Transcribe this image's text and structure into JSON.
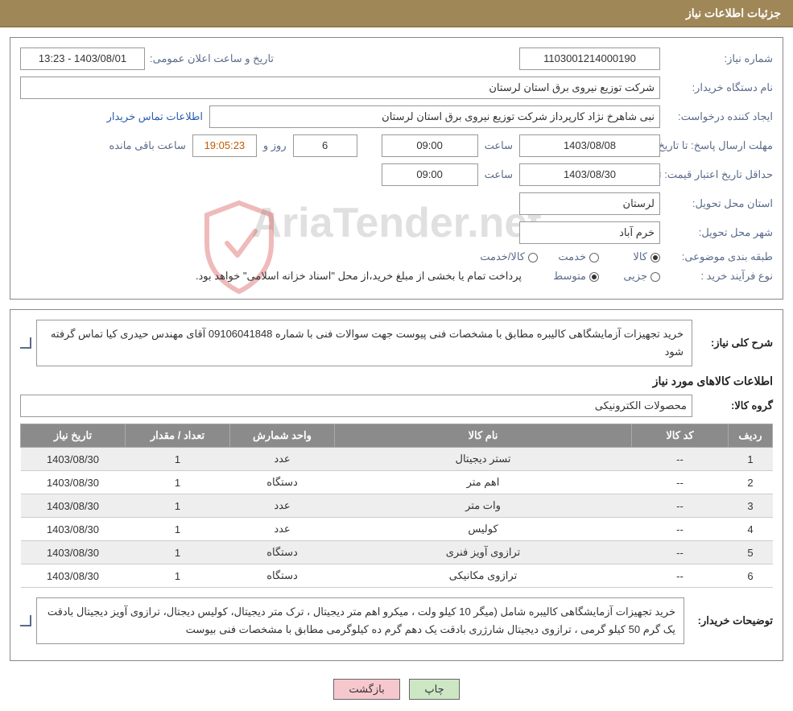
{
  "header": {
    "title": "جزئیات اطلاعات نیاز"
  },
  "fields": {
    "need_no_label": "شماره نیاز:",
    "need_no": "1103001214000190",
    "announce_label": "تاریخ و ساعت اعلان عمومی:",
    "announce": "1403/08/01 - 13:23",
    "buyer_label": "نام دستگاه خریدار:",
    "buyer": "شرکت توزیع نیروی برق استان لرستان",
    "requester_label": "ایجاد کننده درخواست:",
    "requester": "نبی شاهرخ نژاد کارپرداز شرکت توزیع نیروی برق استان لرستان",
    "contact_link": "اطلاعات تماس خریدار",
    "resp_deadline_label": "مهلت ارسال پاسخ:",
    "to_date_label": "تا تاریخ:",
    "resp_date": "1403/08/08",
    "time_label": "ساعت",
    "resp_time": "09:00",
    "days": "6",
    "days_label": "روز و",
    "countdown": "19:05:23",
    "remain_label": "ساعت باقی مانده",
    "validity_label": "حداقل تاریخ اعتبار قیمت:",
    "validity_date": "1403/08/30",
    "validity_time": "09:00",
    "province_label": "استان محل تحویل:",
    "province": "لرستان",
    "city_label": "شهر محل تحویل:",
    "city": "خرم آباد",
    "category_label": "طبقه بندی موضوعی:",
    "cat_goods": "کالا",
    "cat_service": "خدمت",
    "cat_both": "کالا/خدمت",
    "process_label": "نوع فرآیند خرید :",
    "proc_partial": "جزیی",
    "proc_medium": "متوسط",
    "proc_note": "پرداخت تمام یا بخشی از مبلغ خرید،از محل \"اسناد خزانه اسلامی\" خواهد بود.",
    "summary_label": "شرح کلی نیاز:",
    "summary": "خرید تجهیزات آزمایشگاهی کالیبره مطابق با مشخصات فنی پیوست جهت سوالات فنی با شماره 09106041848 آقای مهندس حیدری کیا تماس گرفته شود",
    "items_title": "اطلاعات کالاهای مورد نیاز",
    "group_label": "گروه کالا:",
    "group": "محصولات الکترونیکی",
    "buyer_note_label": "توضیحات خریدار:",
    "buyer_note": "خرید تجهیزات آزمایشگاهی کالیبره شامل (میگر 10 کیلو ولت ، میکرو اهم متر دیجیتال ، ترک متر دیجیتال، کولیس دیجتال، ترازوی آویز دیجیتال بادقت یک گرم  50 کیلو گرمی  ، ترازوی دیجیتال شارژری  بادقت یک دهم گرم ده کیلوگرمی مطابق با مشخصات فنی بیوست"
  },
  "table": {
    "headers": {
      "row": "ردیف",
      "code": "کد کالا",
      "name": "نام کالا",
      "unit": "واحد شمارش",
      "qty": "تعداد / مقدار",
      "date": "تاریخ نیاز"
    },
    "rows": [
      {
        "row": "1",
        "code": "--",
        "name": "تستر دیجیتال",
        "unit": "عدد",
        "qty": "1",
        "date": "1403/08/30"
      },
      {
        "row": "2",
        "code": "--",
        "name": "اهم متر",
        "unit": "دستگاه",
        "qty": "1",
        "date": "1403/08/30"
      },
      {
        "row": "3",
        "code": "--",
        "name": "وات متر",
        "unit": "عدد",
        "qty": "1",
        "date": "1403/08/30"
      },
      {
        "row": "4",
        "code": "--",
        "name": "کولیس",
        "unit": "عدد",
        "qty": "1",
        "date": "1403/08/30"
      },
      {
        "row": "5",
        "code": "--",
        "name": "ترازوی آویز فنری",
        "unit": "دستگاه",
        "qty": "1",
        "date": "1403/08/30"
      },
      {
        "row": "6",
        "code": "--",
        "name": "ترازوی مکانیکی",
        "unit": "دستگاه",
        "qty": "1",
        "date": "1403/08/30"
      }
    ]
  },
  "buttons": {
    "print": "چاپ",
    "back": "بازگشت"
  },
  "watermark": {
    "text": "AriaTender.net"
  },
  "style": {
    "header_bg": "#a08758",
    "label_color": "#5a6b8a",
    "link_color": "#2a5db0",
    "th_bg": "#8b8b8b",
    "row_alt_bg": "#eeeeee",
    "btn_green": "#cde7c5",
    "btn_red": "#f6c8ce",
    "shield_stroke": "#d23c3c"
  }
}
